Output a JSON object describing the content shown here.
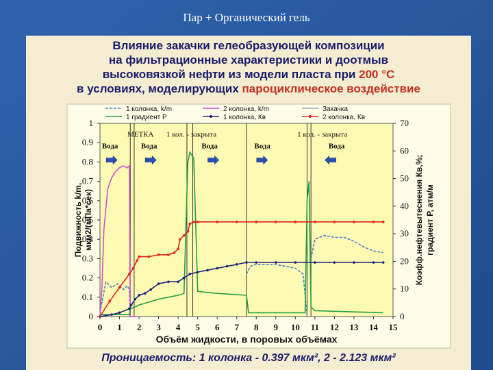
{
  "slide": {
    "title": "Пар + Органический гель",
    "heading_lines": [
      "Влияние закачки гелеобразующей композиции",
      "на фильтрационные характеристики и доотмыв",
      "высоковязкой нефти из модели пласта при "
    ],
    "heading_temp": "200 °С",
    "heading_line4_prefix": "в условиях, моделирующих ",
    "heading_line4_hl": "пароциклическое воздействие",
    "footer": "Проницаемость: 1 колонка - 0.397 мкм², 2 - 2.123 мкм²"
  },
  "colors": {
    "bg": "#2a5aa0",
    "panel": "#f4edd2",
    "plot_bg": "#fdfab4",
    "heading": "#1a1a6a",
    "accent": "#c43020"
  },
  "chart_data": {
    "type": "line",
    "xlabel": "Объём жидкости, в поровых объёмах",
    "ylabel_left": "Подвижность k/m, мкм2/(мПа*сек)",
    "ylabel_right": "Коэфф.нефтевытеснения Кв,%; градиент Р, атм/м",
    "xlim": [
      0,
      15
    ],
    "ylim_left": [
      0,
      1
    ],
    "ylim_right": [
      0,
      70
    ],
    "x_ticks": [
      0,
      1,
      2,
      3,
      4,
      5,
      6,
      7,
      8,
      9,
      10,
      11,
      12,
      13,
      14,
      15
    ],
    "y_left_ticks": [
      0,
      0.1,
      0.2,
      0.3,
      0.4,
      0.5,
      0.6,
      0.7,
      0.8,
      0.9,
      1
    ],
    "y_right_ticks": [
      0,
      10,
      20,
      30,
      40,
      50,
      60,
      70
    ],
    "grid": false,
    "legend_position": "top",
    "legend": [
      {
        "label": "1 колонка, k/m",
        "color": "#4a7fd0",
        "style": "dashed"
      },
      {
        "label": "2 колонка, k/m",
        "color": "#d050d0",
        "style": "solid"
      },
      {
        "label": "Закачка",
        "color": "#9aa8b8",
        "style": "solid"
      },
      {
        "label": "1 градиент P",
        "color": "#20a040",
        "style": "solid"
      },
      {
        "label": "1 колонка, Кв",
        "color": "#1a237e",
        "style": "marker"
      },
      {
        "label": "2 колонка, Кв",
        "color": "#e02020",
        "style": "marker"
      }
    ],
    "annotations": [
      {
        "text": "МЕТКА",
        "x": 1.4,
        "y": 0.93
      },
      {
        "text": "1 кол. - закрыта",
        "x": 3.4,
        "y": 0.93
      },
      {
        "text": "1 кол. - закрыта",
        "x": 10.1,
        "y": 0.93
      },
      {
        "text": "Вода",
        "x": 0.1,
        "y": 0.87
      },
      {
        "text": "Вода",
        "x": 2.1,
        "y": 0.87
      },
      {
        "text": "Вода",
        "x": 5.2,
        "y": 0.87
      },
      {
        "text": "Вода",
        "x": 7.9,
        "y": 0.87
      },
      {
        "text": "Вода",
        "x": 11.7,
        "y": 0.87
      }
    ],
    "arrows": [
      {
        "x": 0.6,
        "y": 0.81,
        "dir": "right"
      },
      {
        "x": 2.6,
        "y": 0.81,
        "dir": "right"
      },
      {
        "x": 5.8,
        "y": 0.81,
        "dir": "right"
      },
      {
        "x": 8.3,
        "y": 0.81,
        "dir": "right"
      },
      {
        "x": 11.8,
        "y": 0.81,
        "dir": "left"
      }
    ],
    "vlines": [
      1.55,
      1.75,
      4.45,
      4.75,
      7.5,
      10.6,
      10.8
    ],
    "series": [
      {
        "name": "1 колонка, k/m",
        "axis": "left",
        "color": "#4a7fd0",
        "dash": true,
        "x": [
          0,
          0.3,
          0.6,
          0.9,
          1.2,
          1.4,
          1.5,
          1.55,
          1.7,
          1.75
        ],
        "y": [
          0.02,
          0.18,
          0.15,
          0.17,
          0.14,
          0.16,
          0.14,
          0.0,
          0.0,
          0.0
        ]
      },
      {
        "name": "1 колонка, k/m",
        "axis": "left",
        "color": "#4a7fd0",
        "dash": true,
        "x": [
          7.5,
          7.7,
          8,
          9,
          10,
          10.4,
          10.6
        ],
        "y": [
          0.22,
          0.26,
          0.27,
          0.27,
          0.25,
          0.22,
          0.0
        ]
      },
      {
        "name": "1 колонка, k/m",
        "axis": "left",
        "color": "#4a7fd0",
        "dash": true,
        "x": [
          10.8,
          11.0,
          11.5,
          12,
          12.5,
          13,
          13.5,
          14,
          14.5
        ],
        "y": [
          0.3,
          0.4,
          0.42,
          0.41,
          0.41,
          0.39,
          0.36,
          0.34,
          0.33
        ]
      },
      {
        "name": "2 колонка, k/m",
        "axis": "left",
        "color": "#d050d0",
        "dash": false,
        "x": [
          0,
          0.1,
          0.2,
          0.4,
          0.6,
          0.8,
          1.0,
          1.2,
          1.4,
          1.5,
          1.55,
          1.7,
          2.0
        ],
        "y": [
          0.0,
          0.15,
          0.45,
          0.66,
          0.72,
          0.75,
          0.77,
          0.78,
          0.77,
          0.78,
          0.0,
          0.0,
          0.0
        ]
      },
      {
        "name": "1 градиент P",
        "axis": "right",
        "color": "#20a040",
        "dash": false,
        "x": [
          0,
          1.5,
          1.55,
          1.8,
          2.0,
          3.0,
          4.0,
          4.3,
          4.5,
          4.6,
          4.8,
          5.0,
          6.0,
          7.5,
          7.6,
          10.5,
          10.6,
          10.7,
          10.8,
          11,
          14.5
        ],
        "y": [
          0.7,
          0.7,
          2.8,
          3.5,
          4.2,
          6.3,
          7.7,
          8.4,
          56,
          59.5,
          57.4,
          9.1,
          8.4,
          7.7,
          1.4,
          1.4,
          42,
          49,
          3.5,
          2.1,
          1.4
        ]
      },
      {
        "name": "1 колонка, Кв",
        "axis": "right",
        "color": "#1a237e",
        "dash": false,
        "x": [
          0,
          0.6,
          1.0,
          1.5,
          1.6,
          1.8,
          2.0,
          2.3,
          2.6,
          3.0,
          3.5,
          4.0,
          4.3,
          4.6,
          5.0,
          5.5,
          6.0,
          6.5,
          7.0,
          7.5,
          8,
          9,
          10,
          11,
          12,
          13,
          14,
          14.5
        ],
        "y": [
          0,
          0.7,
          1.4,
          2.8,
          4.2,
          6.3,
          7.7,
          8.4,
          9.8,
          11.9,
          12.6,
          12.6,
          14.0,
          15.4,
          16.1,
          16.8,
          17.5,
          18.2,
          18.9,
          19.6,
          19.6,
          19.6,
          19.6,
          19.6,
          19.6,
          19.6,
          19.6,
          19.6
        ]
      },
      {
        "name": "2 колонка, Кв",
        "axis": "right",
        "color": "#e02020",
        "dash": false,
        "x": [
          0,
          0.5,
          1.0,
          1.5,
          1.7,
          1.9,
          2.0,
          2.5,
          3.0,
          3.5,
          3.8,
          4.0,
          4.1,
          4.3,
          4.5,
          4.6,
          4.8,
          5.0,
          6,
          7,
          8,
          9,
          10,
          11,
          12,
          13,
          14,
          14.5
        ],
        "y": [
          0,
          5.6,
          10.5,
          15.4,
          17.5,
          20.3,
          21.7,
          21.7,
          22.4,
          22.4,
          23.1,
          24.5,
          28.0,
          29.4,
          30.8,
          33.6,
          34.3,
          34.3,
          34.3,
          34.3,
          34.3,
          34.3,
          34.3,
          34.3,
          34.3,
          34.3,
          34.3,
          34.3
        ]
      }
    ]
  }
}
